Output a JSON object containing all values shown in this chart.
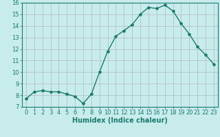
{
  "x": [
    0,
    1,
    2,
    3,
    4,
    5,
    6,
    7,
    8,
    9,
    10,
    11,
    12,
    13,
    14,
    15,
    16,
    17,
    18,
    19,
    20,
    21,
    22,
    23
  ],
  "y": [
    7.7,
    8.3,
    8.4,
    8.3,
    8.3,
    8.1,
    7.9,
    7.3,
    8.1,
    10.0,
    11.8,
    13.1,
    13.6,
    14.1,
    15.0,
    15.6,
    15.5,
    15.8,
    15.3,
    14.2,
    13.3,
    12.2,
    11.5,
    10.7
  ],
  "line_color": "#1a7a6e",
  "marker": "*",
  "marker_size": 3,
  "bg_color": "#c8ecec",
  "grid_color": "#b0b8c0",
  "xlabel": "Humidex (Indice chaleur)",
  "ylim": [
    7,
    16
  ],
  "xlim": [
    -0.5,
    23.5
  ],
  "xlabel_fontsize": 7,
  "tick_fontsize": 6,
  "linewidth": 1.0,
  "tick_color": "#1a7a6e",
  "spine_color": "#1a7a6e"
}
